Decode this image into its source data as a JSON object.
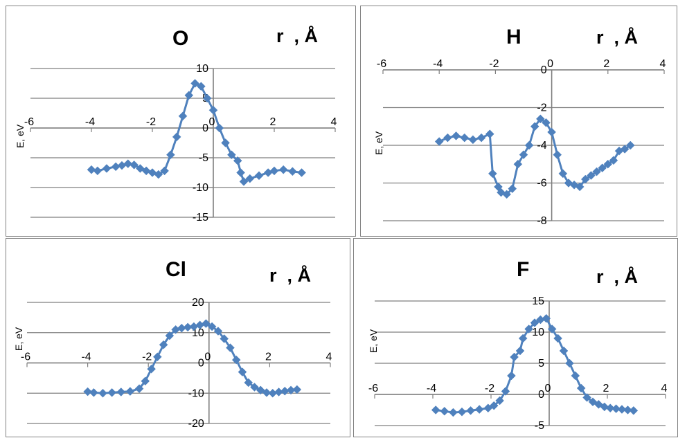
{
  "chart_data": [
    {
      "type": "scatter",
      "title": "O",
      "xlabel": "r  , Å",
      "ylabel": "E, eV",
      "xlim": [
        -6,
        4
      ],
      "ylim": [
        -15,
        10
      ],
      "xticks": [
        -6,
        -4,
        -2,
        0,
        2,
        4
      ],
      "yticks": [
        -15,
        -10,
        -5,
        0,
        5,
        10
      ],
      "grid": true,
      "series_color": "#4f81bd",
      "x": [
        -4.0,
        -3.8,
        -3.5,
        -3.2,
        -3.0,
        -2.8,
        -2.6,
        -2.4,
        -2.2,
        -2.0,
        -1.8,
        -1.6,
        -1.4,
        -1.2,
        -1.0,
        -0.8,
        -0.6,
        -0.4,
        -0.2,
        0.0,
        0.2,
        0.4,
        0.6,
        0.8,
        0.9,
        1.0,
        1.2,
        1.5,
        1.8,
        2.0,
        2.3,
        2.6,
        2.9
      ],
      "y": [
        -7.0,
        -7.2,
        -6.8,
        -6.5,
        -6.3,
        -6.0,
        -6.2,
        -6.8,
        -7.2,
        -7.5,
        -7.8,
        -7.2,
        -4.5,
        -1.5,
        2.0,
        5.5,
        7.5,
        7.0,
        5.0,
        3.0,
        0.0,
        -2.5,
        -4.5,
        -5.5,
        -7.5,
        -9.0,
        -8.5,
        -8.0,
        -7.5,
        -7.2,
        -7.0,
        -7.3,
        -7.5
      ]
    },
    {
      "type": "scatter",
      "title": "H",
      "xlabel": "r  , Å",
      "ylabel": "E, eV",
      "xlim": [
        -6,
        4
      ],
      "ylim": [
        -8,
        0
      ],
      "xticks": [
        -6,
        -4,
        -2,
        0,
        2,
        4
      ],
      "yticks": [
        -8,
        -6,
        -4,
        -2,
        0
      ],
      "grid": true,
      "series_color": "#4f81bd",
      "x": [
        -4.0,
        -3.7,
        -3.4,
        -3.1,
        -2.8,
        -2.5,
        -2.2,
        -2.1,
        -1.9,
        -1.8,
        -1.6,
        -1.4,
        -1.2,
        -1.0,
        -0.8,
        -0.6,
        -0.4,
        -0.2,
        0.0,
        0.2,
        0.4,
        0.6,
        0.8,
        1.0,
        1.2,
        1.4,
        1.6,
        1.8,
        2.0,
        2.2,
        2.4,
        2.6,
        2.8
      ],
      "y": [
        -3.8,
        -3.6,
        -3.5,
        -3.6,
        -3.7,
        -3.6,
        -3.4,
        -5.5,
        -6.2,
        -6.5,
        -6.6,
        -6.3,
        -5.0,
        -4.5,
        -4.0,
        -3.0,
        -2.6,
        -2.8,
        -3.3,
        -4.5,
        -5.5,
        -6.0,
        -6.1,
        -6.2,
        -5.8,
        -5.6,
        -5.4,
        -5.2,
        -5.0,
        -4.8,
        -4.3,
        -4.2,
        -4.0
      ]
    },
    {
      "type": "scatter",
      "title": "Cl",
      "xlabel": "r  , Å",
      "ylabel": "E, eV",
      "xlim": [
        -6,
        4
      ],
      "ylim": [
        -20,
        20
      ],
      "xticks": [
        -6,
        -4,
        -2,
        0,
        2,
        4
      ],
      "yticks": [
        -20,
        -10,
        0,
        10,
        20
      ],
      "grid": true,
      "series_color": "#4f81bd",
      "x": [
        -4.0,
        -3.8,
        -3.5,
        -3.2,
        -2.9,
        -2.6,
        -2.3,
        -2.1,
        -1.9,
        -1.7,
        -1.5,
        -1.3,
        -1.1,
        -0.9,
        -0.7,
        -0.5,
        -0.3,
        -0.1,
        0.1,
        0.3,
        0.5,
        0.7,
        0.9,
        1.1,
        1.3,
        1.5,
        1.7,
        1.9,
        2.1,
        2.3,
        2.5,
        2.7,
        2.9
      ],
      "y": [
        -9.5,
        -9.8,
        -10.0,
        -9.8,
        -9.6,
        -9.4,
        -8.5,
        -6.0,
        -2.0,
        2.0,
        6.0,
        9.0,
        11.0,
        11.5,
        11.8,
        12.0,
        12.5,
        13.0,
        12.0,
        10.5,
        8.0,
        5.0,
        1.0,
        -3.0,
        -6.5,
        -8.0,
        -9.0,
        -9.8,
        -10.0,
        -9.6,
        -9.3,
        -9.0,
        -8.8
      ]
    },
    {
      "type": "scatter",
      "title": "F",
      "xlabel": "r  , Å",
      "ylabel": "E, eV",
      "xlim": [
        -6,
        4
      ],
      "ylim": [
        -5,
        15
      ],
      "xticks": [
        -6,
        -4,
        -2,
        0,
        2,
        4
      ],
      "yticks": [
        -5,
        0,
        5,
        10,
        15
      ],
      "grid": true,
      "series_color": "#4f81bd",
      "x": [
        -3.9,
        -3.6,
        -3.3,
        -3.0,
        -2.7,
        -2.4,
        -2.1,
        -1.9,
        -1.7,
        -1.5,
        -1.3,
        -1.2,
        -1.0,
        -0.9,
        -0.7,
        -0.5,
        -0.3,
        -0.1,
        0.1,
        0.3,
        0.5,
        0.7,
        0.9,
        1.1,
        1.3,
        1.5,
        1.7,
        1.9,
        2.1,
        2.3,
        2.5,
        2.7,
        2.9
      ],
      "y": [
        -2.5,
        -2.7,
        -2.9,
        -2.8,
        -2.6,
        -2.4,
        -2.2,
        -1.8,
        -1.0,
        0.5,
        3.0,
        6.0,
        7.0,
        9.0,
        10.5,
        11.5,
        12.0,
        12.2,
        10.5,
        9.0,
        7.0,
        5.0,
        3.0,
        1.0,
        -0.5,
        -1.2,
        -1.6,
        -2.0,
        -2.2,
        -2.3,
        -2.4,
        -2.5,
        -2.6
      ]
    }
  ]
}
